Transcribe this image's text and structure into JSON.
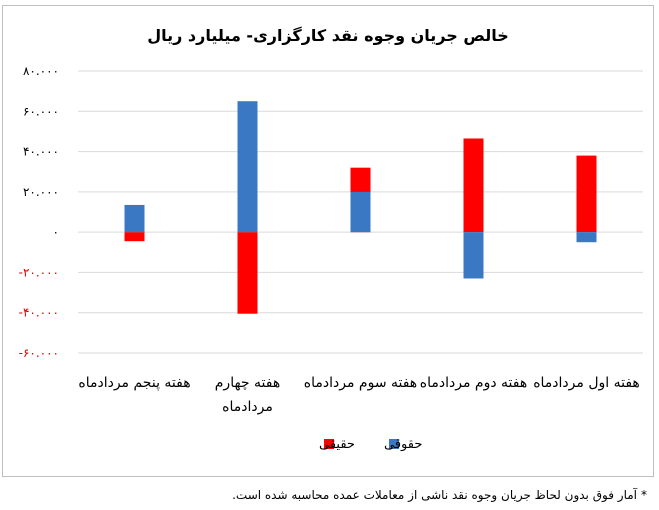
{
  "chart_data": {
    "type": "bar",
    "title": "خالص جریان وجوه نقد کارگزاری- میلیارد ریال",
    "categories": [
      "هفته اول مردادماه",
      "هفته دوم مردادماه",
      "هفته سوم مردادماه",
      "هفته چهارم مردادماه",
      "هفته پنجم مردادماه"
    ],
    "category_lines": [
      [
        "هفته اول مردادماه"
      ],
      [
        "هفته دوم مردادماه"
      ],
      [
        "هفته سوم مردادماه"
      ],
      [
        "هفته چهارم",
        "مردادماه"
      ],
      [
        "هفته پنجم مردادماه"
      ]
    ],
    "series": [
      {
        "name": "حقیقی",
        "color": "#ff0000",
        "values": [
          38000,
          46500,
          32000,
          -40500,
          -4500
        ]
      },
      {
        "name": "حقوقی",
        "color": "#3a78c4",
        "values": [
          -5000,
          -23000,
          20000,
          65000,
          13500
        ]
      }
    ],
    "ylim": [
      -60000,
      80000
    ],
    "yticks": [
      {
        "value": 80000,
        "label": "۸۰.۰۰۰"
      },
      {
        "value": 60000,
        "label": "۶۰.۰۰۰"
      },
      {
        "value": 40000,
        "label": "۴۰.۰۰۰"
      },
      {
        "value": 20000,
        "label": "۲۰.۰۰۰"
      },
      {
        "value": 0,
        "label": "۰"
      },
      {
        "value": -20000,
        "label": "-۲۰.۰۰۰"
      },
      {
        "value": -40000,
        "label": "-۴۰.۰۰۰"
      },
      {
        "value": -60000,
        "label": "-۶۰.۰۰۰"
      }
    ],
    "negative_tick_color": "#e00000",
    "grid": true,
    "legend_position": "bottom-center"
  },
  "footnote": {
    "star": "*",
    "text": "آمار فوق بدون لحاظ جریان وجوه نقد ناشی از معاملات عمده محاسبه شده است."
  }
}
